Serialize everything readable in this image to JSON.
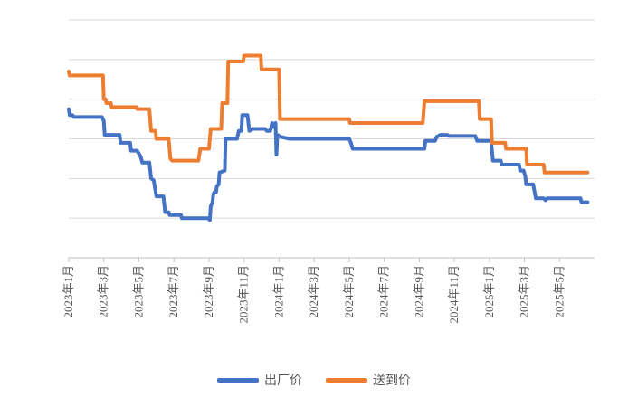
{
  "chart_data": {
    "type": "line",
    "title": "",
    "xlabel": "",
    "ylabel": "",
    "x_range": [
      0,
      30
    ],
    "ylim": [
      0,
      6
    ],
    "y_ticks": [
      0,
      1,
      2,
      3,
      4,
      5,
      6
    ],
    "show_y_tick_labels": false,
    "grid": "horizontal",
    "legend_position": "bottom",
    "x_tick_labels": [
      {
        "x": 0,
        "label": "2023年1月"
      },
      {
        "x": 2,
        "label": "2023年3月"
      },
      {
        "x": 4,
        "label": "2023年5月"
      },
      {
        "x": 6,
        "label": "2023年7月"
      },
      {
        "x": 8,
        "label": "2023年9月"
      },
      {
        "x": 10,
        "label": "2023年11月"
      },
      {
        "x": 12,
        "label": "2024年1月"
      },
      {
        "x": 14,
        "label": "2024年3月"
      },
      {
        "x": 16,
        "label": "2024年5月"
      },
      {
        "x": 18,
        "label": "2024年7月"
      },
      {
        "x": 20,
        "label": "2024年9月"
      },
      {
        "x": 22,
        "label": "2024年11月"
      },
      {
        "x": 24,
        "label": "2025年1月"
      },
      {
        "x": 26,
        "label": "2025年3月"
      },
      {
        "x": 28,
        "label": "2025年5月"
      }
    ],
    "series": [
      {
        "name": "出厂价",
        "color": "#4472C4",
        "points": [
          [
            0,
            3.75
          ],
          [
            0.05,
            3.6
          ],
          [
            0.2,
            3.6
          ],
          [
            0.3,
            3.55
          ],
          [
            1.9,
            3.55
          ],
          [
            2.0,
            3.45
          ],
          [
            2.05,
            3.1
          ],
          [
            2.9,
            3.1
          ],
          [
            2.95,
            2.9
          ],
          [
            3.5,
            2.9
          ],
          [
            3.55,
            2.7
          ],
          [
            3.9,
            2.7
          ],
          [
            4.1,
            2.55
          ],
          [
            4.2,
            2.4
          ],
          [
            4.6,
            2.4
          ],
          [
            4.7,
            2.0
          ],
          [
            4.85,
            1.95
          ],
          [
            5.0,
            1.55
          ],
          [
            5.4,
            1.55
          ],
          [
            5.5,
            1.15
          ],
          [
            5.7,
            1.15
          ],
          [
            5.75,
            1.08
          ],
          [
            6.4,
            1.08
          ],
          [
            6.45,
            1.0
          ],
          [
            7.95,
            1.0
          ],
          [
            8.05,
            0.95
          ],
          [
            8.1,
            1.3
          ],
          [
            8.2,
            1.4
          ],
          [
            8.25,
            1.6
          ],
          [
            8.3,
            1.65
          ],
          [
            8.4,
            1.65
          ],
          [
            8.45,
            1.8
          ],
          [
            8.55,
            1.85
          ],
          [
            8.6,
            2.15
          ],
          [
            8.9,
            2.2
          ],
          [
            8.95,
            3.0
          ],
          [
            9.6,
            3.0
          ],
          [
            9.7,
            3.2
          ],
          [
            9.85,
            3.2
          ],
          [
            9.9,
            3.6
          ],
          [
            10.2,
            3.6
          ],
          [
            10.3,
            3.2
          ],
          [
            10.5,
            3.25
          ],
          [
            11.2,
            3.25
          ],
          [
            11.3,
            3.2
          ],
          [
            11.5,
            3.2
          ],
          [
            11.6,
            3.4
          ],
          [
            11.7,
            3.3
          ],
          [
            11.8,
            3.4
          ],
          [
            11.85,
            2.6
          ],
          [
            11.9,
            3.1
          ],
          [
            12.1,
            3.05
          ],
          [
            12.6,
            3.0
          ],
          [
            16.0,
            3.0
          ],
          [
            16.1,
            2.9
          ],
          [
            16.2,
            2.75
          ],
          [
            20.3,
            2.75
          ],
          [
            20.35,
            2.95
          ],
          [
            20.9,
            2.95
          ],
          [
            21.0,
            3.05
          ],
          [
            21.2,
            3.1
          ],
          [
            21.6,
            3.1
          ],
          [
            21.7,
            3.07
          ],
          [
            23.2,
            3.07
          ],
          [
            23.3,
            2.95
          ],
          [
            24.1,
            2.95
          ],
          [
            24.2,
            2.45
          ],
          [
            24.65,
            2.45
          ],
          [
            24.7,
            2.35
          ],
          [
            25.7,
            2.35
          ],
          [
            25.75,
            2.2
          ],
          [
            25.95,
            2.2
          ],
          [
            26.05,
            2.05
          ],
          [
            26.1,
            1.85
          ],
          [
            26.5,
            1.85
          ],
          [
            26.65,
            1.5
          ],
          [
            27.1,
            1.5
          ],
          [
            27.2,
            1.45
          ],
          [
            27.3,
            1.5
          ],
          [
            29.2,
            1.5
          ],
          [
            29.25,
            1.4
          ],
          [
            29.6,
            1.4
          ]
        ]
      },
      {
        "name": "送到价",
        "color": "#ED7D31",
        "points": [
          [
            0,
            4.7
          ],
          [
            0.05,
            4.6
          ],
          [
            1.95,
            4.6
          ],
          [
            2.0,
            4.0
          ],
          [
            2.1,
            4.0
          ],
          [
            2.15,
            3.9
          ],
          [
            2.4,
            3.9
          ],
          [
            2.45,
            3.8
          ],
          [
            3.85,
            3.8
          ],
          [
            3.9,
            3.75
          ],
          [
            4.6,
            3.75
          ],
          [
            4.7,
            3.2
          ],
          [
            4.95,
            3.2
          ],
          [
            5.0,
            3.0
          ],
          [
            5.7,
            3.0
          ],
          [
            5.8,
            2.5
          ],
          [
            5.9,
            2.45
          ],
          [
            7.4,
            2.45
          ],
          [
            7.5,
            2.75
          ],
          [
            8.0,
            2.75
          ],
          [
            8.1,
            3.25
          ],
          [
            8.7,
            3.25
          ],
          [
            8.75,
            3.9
          ],
          [
            9.05,
            3.9
          ],
          [
            9.1,
            4.95
          ],
          [
            9.95,
            4.95
          ],
          [
            10.0,
            5.1
          ],
          [
            10.95,
            5.1
          ],
          [
            11.0,
            4.75
          ],
          [
            12.0,
            4.75
          ],
          [
            12.05,
            3.5
          ],
          [
            16.0,
            3.5
          ],
          [
            16.05,
            3.4
          ],
          [
            20.2,
            3.4
          ],
          [
            20.3,
            3.95
          ],
          [
            23.4,
            3.95
          ],
          [
            23.45,
            3.5
          ],
          [
            24.1,
            3.5
          ],
          [
            24.15,
            2.9
          ],
          [
            24.9,
            2.9
          ],
          [
            24.95,
            2.75
          ],
          [
            26.1,
            2.75
          ],
          [
            26.15,
            2.35
          ],
          [
            27.1,
            2.35
          ],
          [
            27.15,
            2.15
          ],
          [
            29.6,
            2.15
          ]
        ]
      }
    ]
  }
}
